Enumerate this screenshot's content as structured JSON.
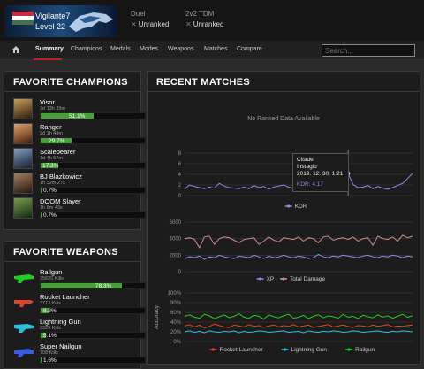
{
  "header": {
    "player_name": "Vigilante7",
    "level": "Level 22",
    "flag_colors": [
      "#cd2a3e",
      "#ffffff",
      "#436f4d"
    ],
    "ranks": [
      {
        "mode": "Duel",
        "status": "Unranked"
      },
      {
        "mode": "2v2 TDM",
        "status": "Unranked"
      }
    ]
  },
  "nav": {
    "home_icon": "home-icon",
    "tabs": [
      "Summary",
      "Champions",
      "Medals",
      "Modes",
      "Weapons",
      "Matches",
      "Compare"
    ],
    "active_tab": "Summary",
    "search_placeholder": "Search..."
  },
  "champions_panel": {
    "title": "FAVORITE CHAMPIONS",
    "items": [
      {
        "name": "Visor",
        "time": "3d 13h 39m",
        "percent_label": "51.1%",
        "percent": 51.1,
        "color": "#8a7340"
      },
      {
        "name": "Ranger",
        "time": "2d 1h 48m",
        "percent_label": "29.7%",
        "percent": 29.7,
        "color": "#a06a3a"
      },
      {
        "name": "Scalebearer",
        "time": "1d 4h 57m",
        "percent_label": "17.3%",
        "percent": 17.3,
        "color": "#5b6f8a"
      },
      {
        "name": "BJ Blazkowicz",
        "time": "1h 32m 27s",
        "percent_label": "0.7%",
        "percent": 0.7,
        "color": "#6e5440"
      },
      {
        "name": "DOOM Slayer",
        "time": "1h 6m 43s",
        "percent_label": "0.7%",
        "percent": 0.7,
        "color": "#4f6b3a"
      }
    ]
  },
  "weapons_panel": {
    "title": "FAVORITE WEAPONS",
    "items": [
      {
        "name": "Railgun",
        "kills": "35620 Kills",
        "percent_label": "78.3%",
        "percent": 78.3,
        "color": "#22cc22"
      },
      {
        "name": "Rocket Launcher",
        "kills": "3713 Kills",
        "percent_label": "8.2%",
        "percent": 8.2,
        "color": "#e2442a"
      },
      {
        "name": "Lightning Gun",
        "kills": "2329 Kills",
        "percent_label": "5.1%",
        "percent": 5.1,
        "color": "#2ac0d8"
      },
      {
        "name": "Super Nailgun",
        "kills": "708 Kills",
        "percent_label": "1.6%",
        "percent": 1.6,
        "color": "#3a5ae2"
      }
    ]
  },
  "matches_panel": {
    "title": "RECENT MATCHES",
    "no_ranked": "No Ranked Data Available",
    "tooltip": {
      "map": "Citadel",
      "mode": "Instagib",
      "date": "2019. 12. 30. 1:21",
      "kdr_label": "KDR: 4.17"
    }
  },
  "chart_data": [
    {
      "type": "line",
      "ylim": [
        0,
        8
      ],
      "yticks": [
        0,
        2,
        4,
        6,
        8
      ],
      "series": [
        {
          "name": "KDR",
          "color": "#8c8ce6",
          "values": [
            1.2,
            2.0,
            1.7,
            1.5,
            1.3,
            1.6,
            1.4,
            2.3,
            1.8,
            1.5,
            1.4,
            1.3,
            1.6,
            1.3,
            1.9,
            1.5,
            1.7,
            1.2,
            1.6,
            1.8,
            2.0,
            1.6,
            1.3,
            1.7,
            1.5,
            1.9,
            1.4,
            1.2,
            1.8,
            1.5,
            1.7,
            1.6,
            1.8,
            4.17,
            2.1,
            1.5,
            1.6,
            1.9,
            1.3,
            1.7,
            1.4,
            1.2,
            1.5,
            1.9,
            2.3,
            3.2,
            4.2
          ]
        }
      ]
    },
    {
      "type": "line",
      "ylim": [
        0,
        6000
      ],
      "yticks": [
        0,
        2000,
        4000,
        6000
      ],
      "series": [
        {
          "name": "XP",
          "color": "#8c8ce6",
          "values": [
            1600,
            1800,
            1700,
            1900,
            1500,
            1800,
            1700,
            2000,
            1800,
            1700,
            1600,
            1900,
            1800,
            1700,
            2000,
            1800,
            1600,
            1900,
            1700,
            1800,
            2000,
            1800,
            1700,
            1900,
            1800,
            1600,
            1700,
            2100,
            1800,
            1700,
            1900,
            1800,
            2000,
            1900,
            1800,
            1700,
            1900,
            2000,
            1800,
            1700,
            1900,
            1800,
            2000,
            1900,
            1700,
            1900,
            1800
          ]
        },
        {
          "name": "Total Damage",
          "color": "#d08a8a",
          "values": [
            4000,
            4100,
            3900,
            2900,
            4200,
            4300,
            3300,
            4000,
            4200,
            4100,
            3800,
            3500,
            3900,
            4000,
            4100,
            3300,
            3700,
            4200,
            3800,
            3600,
            4100,
            4000,
            3900,
            4200,
            3700,
            4100,
            4000,
            3500,
            4200,
            4300,
            3800,
            4000,
            4100,
            3900,
            4200,
            3700,
            4000,
            4100,
            3200,
            4300,
            4000,
            3900,
            4200,
            3700,
            4400,
            4100,
            4300
          ]
        }
      ]
    },
    {
      "type": "line",
      "ylabel": "Accuracy",
      "ylim": [
        0,
        100
      ],
      "yticks": [
        "0%",
        "20%",
        "40%",
        "60%",
        "80%",
        "100%"
      ],
      "series": [
        {
          "name": "Rocket Launcher",
          "color": "#e2442a",
          "values": [
            32,
            35,
            30,
            34,
            28,
            31,
            36,
            33,
            30,
            29,
            34,
            32,
            30,
            35,
            31,
            33,
            29,
            32,
            34,
            30,
            33,
            31,
            35,
            30,
            32,
            34,
            29,
            31,
            33,
            35,
            30,
            32,
            34,
            31,
            29,
            33,
            32,
            30,
            34,
            31,
            33,
            35,
            30,
            32,
            31,
            33,
            34
          ]
        },
        {
          "name": "Lightning Gun",
          "color": "#2ac0d8",
          "values": [
            20,
            22,
            19,
            21,
            18,
            22,
            20,
            19,
            21,
            20,
            22,
            18,
            21,
            19,
            20,
            22,
            21,
            19,
            20,
            21,
            22,
            19,
            20,
            21,
            18,
            22,
            20,
            19,
            21,
            20,
            22,
            21,
            19,
            20,
            22,
            21,
            19,
            20,
            21,
            22,
            20,
            19,
            21,
            20,
            22,
            21,
            20
          ]
        },
        {
          "name": "Railgun",
          "color": "#22cc22",
          "values": [
            52,
            55,
            50,
            48,
            56,
            53,
            47,
            51,
            55,
            49,
            52,
            57,
            50,
            48,
            54,
            52,
            46,
            55,
            51,
            49,
            53,
            56,
            48,
            50,
            54,
            47,
            52,
            55,
            49,
            53,
            51,
            48,
            56,
            50,
            52,
            47,
            54,
            51,
            49,
            55,
            50,
            53,
            48,
            52,
            56,
            50,
            53
          ]
        }
      ]
    }
  ]
}
